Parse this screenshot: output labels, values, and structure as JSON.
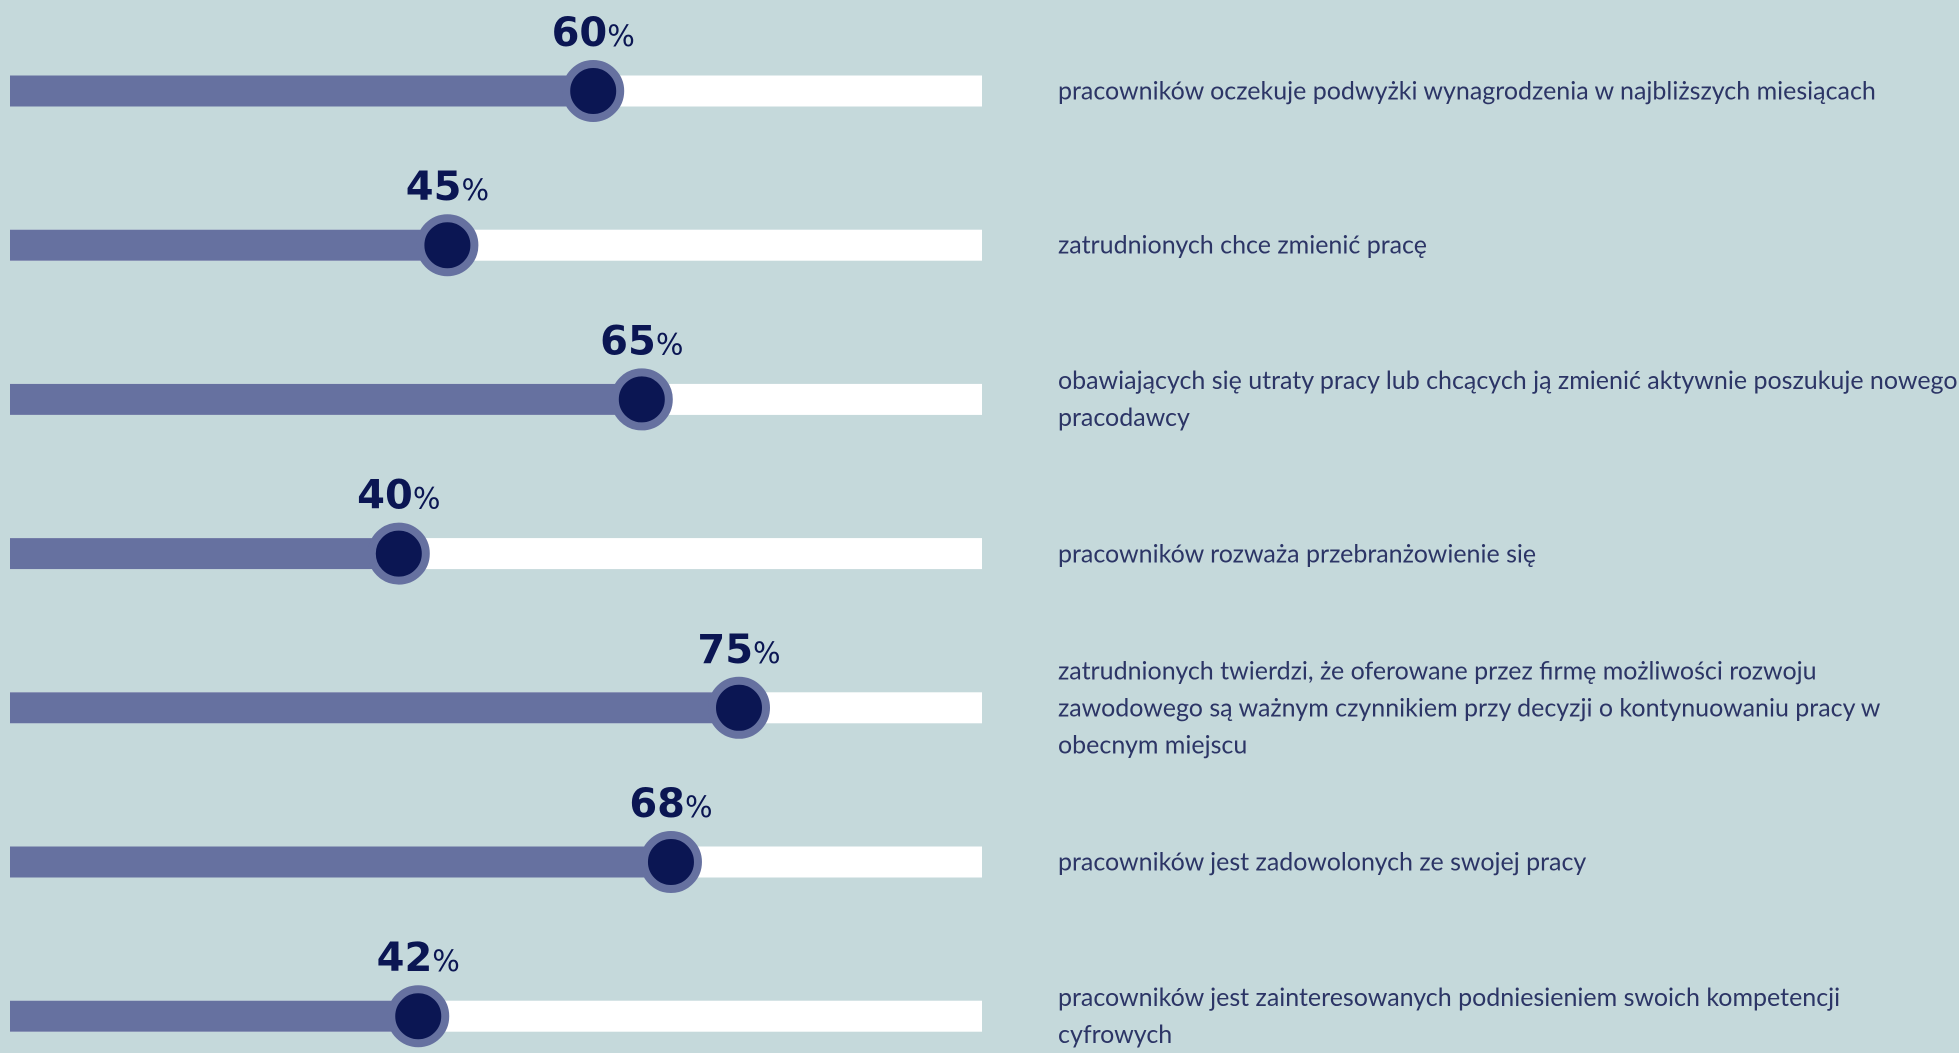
{
  "chart_data": {
    "type": "bar",
    "orientation": "horizontal",
    "categories": [
      "pracowników oczekuje podwyżki wynagrodzenia w najbliższych miesiącach",
      "zatrudnionych chce zmienić pracę",
      "obawiających się utraty pracy lub chcących ją zmienić aktywnie poszukuje nowego pracodawcy",
      "pracowników rozważa przebranżowienie się",
      "zatrudnionych twierdzi, że oferowane przez firmę możliwości rozwoju zawodowego są ważnym czynnikiem przy decyzji o kontynuowaniu pracy w obecnym miejscu",
      "pracowników jest zadowolonych ze swojej pracy",
      "pracowników jest zainteresowanych podniesieniem swoich kompetencji cyfrowych"
    ],
    "values": [
      60,
      45,
      65,
      40,
      75,
      68,
      42
    ],
    "value_labels": [
      "60%",
      "45%",
      "65%",
      "40%",
      "75%",
      "68%",
      "42%"
    ],
    "xlim": [
      0,
      100
    ],
    "color": "#6671a0",
    "track_color": "#ffffff",
    "marker_color": "#0b1653"
  }
}
